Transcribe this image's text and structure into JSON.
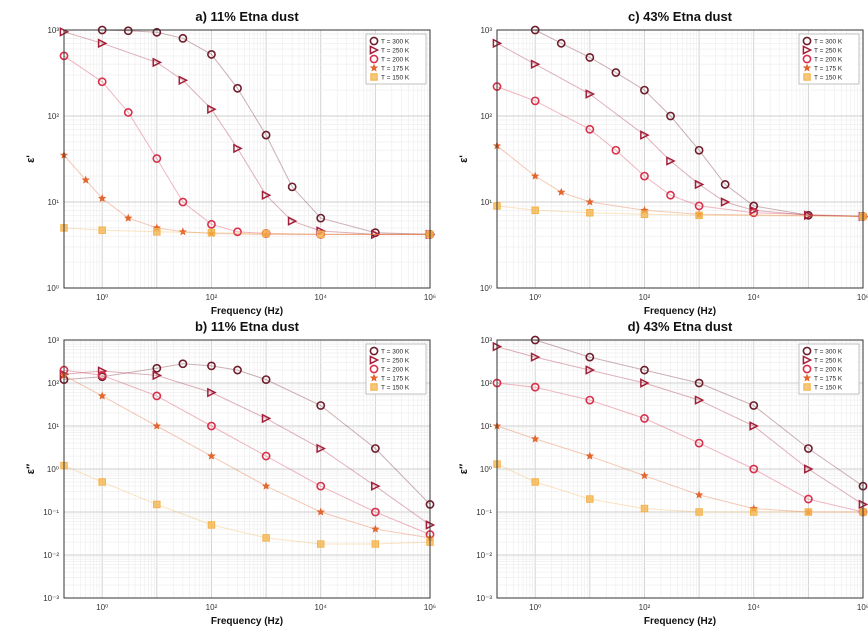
{
  "legend_labels": [
    "T = 300 K",
    "T = 250 K",
    "T = 200 K",
    "T = 175 K",
    "T = 150 K"
  ],
  "series_colors": [
    "#6e1d2b",
    "#a31f38",
    "#d8304a",
    "#e2672e",
    "#f4b34a"
  ],
  "series_markers": [
    "circle",
    "triangle",
    "circle",
    "star",
    "square"
  ],
  "chart_data": [
    {
      "type": "scatter",
      "title": "a) 11% Etna dust",
      "xlabel": "Frequency (Hz)",
      "ylabel": "ε'",
      "xscale": "log",
      "yscale": "log",
      "xlim": [
        0.2,
        1000000
      ],
      "ylim": [
        1,
        1000
      ],
      "x_ticks": [
        1,
        100,
        10000,
        1000000
      ],
      "x_tick_labels": [
        "10⁰",
        "10²",
        "10⁴",
        "10⁶"
      ],
      "y_ticks": [
        1,
        10,
        100,
        1000
      ],
      "y_tick_labels": [
        "10⁰",
        "10¹",
        "10²",
        "10³"
      ],
      "grid": true,
      "legend_position": "top-right",
      "series": [
        {
          "name": "T = 300 K",
          "x": [
            1,
            3,
            10,
            30,
            100,
            300,
            1000,
            3000,
            10000,
            100000,
            1000000
          ],
          "y": [
            1000,
            980,
            940,
            800,
            520,
            210,
            60,
            15,
            6.5,
            4.4,
            4.2
          ]
        },
        {
          "name": "T = 250 K",
          "x": [
            0.2,
            1,
            10,
            30,
            100,
            300,
            1000,
            3000,
            10000,
            100000,
            1000000
          ],
          "y": [
            950,
            700,
            420,
            260,
            120,
            42,
            12,
            6,
            4.6,
            4.2,
            4.2
          ]
        },
        {
          "name": "T = 200 K",
          "x": [
            0.2,
            1,
            3,
            10,
            30,
            100,
            300,
            1000,
            10000,
            1000000
          ],
          "y": [
            500,
            250,
            110,
            32,
            10,
            5.5,
            4.5,
            4.3,
            4.2,
            4.2
          ]
        },
        {
          "name": "T = 175 K",
          "x": [
            0.2,
            0.5,
            1,
            3,
            10,
            30,
            100,
            1000,
            1000000
          ],
          "y": [
            35,
            18,
            11,
            6.5,
            5,
            4.5,
            4.3,
            4.2,
            4.2
          ]
        },
        {
          "name": "T = 150 K",
          "x": [
            0.2,
            1,
            10,
            100,
            1000,
            10000,
            1000000
          ],
          "y": [
            5,
            4.7,
            4.5,
            4.4,
            4.3,
            4.2,
            4.2
          ]
        }
      ]
    },
    {
      "type": "scatter",
      "title": "c) 43% Etna dust",
      "xlabel": "Frequency (Hz)",
      "ylabel": "ε'",
      "xscale": "log",
      "yscale": "log",
      "xlim": [
        0.2,
        1000000
      ],
      "ylim": [
        1,
        1000
      ],
      "x_ticks": [
        1,
        100,
        10000,
        1000000
      ],
      "x_tick_labels": [
        "10⁰",
        "10²",
        "10⁴",
        "10⁶"
      ],
      "y_ticks": [
        1,
        10,
        100,
        1000
      ],
      "y_tick_labels": [
        "10⁰",
        "10¹",
        "10²",
        "10³"
      ],
      "grid": true,
      "legend_position": "top-right",
      "series": [
        {
          "name": "T = 300 K",
          "x": [
            1,
            3,
            10,
            30,
            100,
            300,
            1000,
            3000,
            10000,
            100000,
            1000000
          ],
          "y": [
            1000,
            700,
            480,
            320,
            200,
            100,
            40,
            16,
            9,
            7,
            6.8
          ]
        },
        {
          "name": "T = 250 K",
          "x": [
            0.2,
            1,
            10,
            100,
            300,
            1000,
            3000,
            10000,
            100000,
            1000000
          ],
          "y": [
            700,
            400,
            180,
            60,
            30,
            16,
            10,
            8,
            7,
            6.8
          ]
        },
        {
          "name": "T = 200 K",
          "x": [
            0.2,
            1,
            10,
            30,
            100,
            300,
            1000,
            10000,
            1000000
          ],
          "y": [
            220,
            150,
            70,
            40,
            20,
            12,
            9,
            7.5,
            6.8
          ]
        },
        {
          "name": "T = 175 K",
          "x": [
            0.2,
            1,
            3,
            10,
            100,
            1000,
            1000000
          ],
          "y": [
            45,
            20,
            13,
            10,
            8,
            7.2,
            6.8
          ]
        },
        {
          "name": "T = 150 K",
          "x": [
            0.2,
            1,
            10,
            100,
            1000,
            1000000
          ],
          "y": [
            9,
            8,
            7.5,
            7.2,
            7,
            6.8
          ]
        }
      ]
    },
    {
      "type": "scatter",
      "title": "b) 11% Etna dust",
      "xlabel": "Frequency (Hz)",
      "ylabel": "ε″",
      "xscale": "log",
      "yscale": "log",
      "xlim": [
        0.2,
        1000000
      ],
      "ylim": [
        0.001,
        1000
      ],
      "x_ticks": [
        1,
        100,
        10000,
        1000000
      ],
      "x_tick_labels": [
        "10⁰",
        "10²",
        "10⁴",
        "10⁶"
      ],
      "y_ticks": [
        0.001,
        0.01,
        0.1,
        1,
        10,
        100,
        1000
      ],
      "y_tick_labels": [
        "10⁻³",
        "10⁻²",
        "10⁻¹",
        "10⁰",
        "10¹",
        "10²",
        "10³"
      ],
      "grid": true,
      "legend_position": "top-right",
      "series": [
        {
          "name": "T = 300 K",
          "x": [
            0.2,
            1,
            10,
            30,
            100,
            300,
            1000,
            10000,
            100000,
            1000000
          ],
          "y": [
            120,
            140,
            220,
            280,
            250,
            200,
            120,
            30,
            3,
            0.15
          ]
        },
        {
          "name": "T = 250 K",
          "x": [
            0.2,
            1,
            10,
            100,
            1000,
            10000,
            100000,
            1000000
          ],
          "y": [
            160,
            190,
            150,
            60,
            15,
            3,
            0.4,
            0.05
          ]
        },
        {
          "name": "T = 200 K",
          "x": [
            0.2,
            1,
            10,
            100,
            1000,
            10000,
            100000,
            1000000
          ],
          "y": [
            200,
            150,
            50,
            10,
            2,
            0.4,
            0.1,
            0.03
          ]
        },
        {
          "name": "T = 175 K",
          "x": [
            0.2,
            1,
            10,
            100,
            1000,
            10000,
            100000,
            1000000
          ],
          "y": [
            150,
            50,
            10,
            2,
            0.4,
            0.1,
            0.04,
            0.025
          ]
        },
        {
          "name": "T = 150 K",
          "x": [
            0.2,
            1,
            10,
            100,
            1000,
            10000,
            100000,
            1000000
          ],
          "y": [
            1.2,
            0.5,
            0.15,
            0.05,
            0.025,
            0.018,
            0.018,
            0.02
          ]
        }
      ]
    },
    {
      "type": "scatter",
      "title": "d) 43% Etna dust",
      "xlabel": "Frequency (Hz)",
      "ylabel": "ε″",
      "xscale": "log",
      "yscale": "log",
      "xlim": [
        0.2,
        1000000
      ],
      "ylim": [
        0.001,
        1000
      ],
      "x_ticks": [
        1,
        100,
        10000,
        1000000
      ],
      "x_tick_labels": [
        "10⁰",
        "10²",
        "10⁴",
        "10⁶"
      ],
      "y_ticks": [
        0.001,
        0.01,
        0.1,
        1,
        10,
        100,
        1000
      ],
      "y_tick_labels": [
        "10⁻³",
        "10⁻²",
        "10⁻¹",
        "10⁰",
        "10¹",
        "10²",
        "10³"
      ],
      "grid": true,
      "legend_position": "top-right",
      "series": [
        {
          "name": "T = 300 K",
          "x": [
            1,
            10,
            100,
            1000,
            10000,
            100000,
            1000000
          ],
          "y": [
            1000,
            400,
            200,
            100,
            30,
            3,
            0.4
          ]
        },
        {
          "name": "T = 250 K",
          "x": [
            0.2,
            1,
            10,
            100,
            1000,
            10000,
            100000,
            1000000
          ],
          "y": [
            700,
            400,
            200,
            100,
            40,
            10,
            1,
            0.15
          ]
        },
        {
          "name": "T = 200 K",
          "x": [
            0.2,
            1,
            10,
            100,
            1000,
            10000,
            100000,
            1000000
          ],
          "y": [
            100,
            80,
            40,
            15,
            4,
            1,
            0.2,
            0.1
          ]
        },
        {
          "name": "T = 175 K",
          "x": [
            0.2,
            1,
            10,
            100,
            1000,
            10000,
            100000,
            1000000
          ],
          "y": [
            10,
            5,
            2,
            0.7,
            0.25,
            0.12,
            0.1,
            0.1
          ]
        },
        {
          "name": "T = 150 K",
          "x": [
            0.2,
            1,
            10,
            100,
            1000,
            10000,
            100000,
            1000000
          ],
          "y": [
            1.3,
            0.5,
            0.2,
            0.12,
            0.1,
            0.1,
            0.1,
            0.1
          ]
        }
      ]
    }
  ]
}
